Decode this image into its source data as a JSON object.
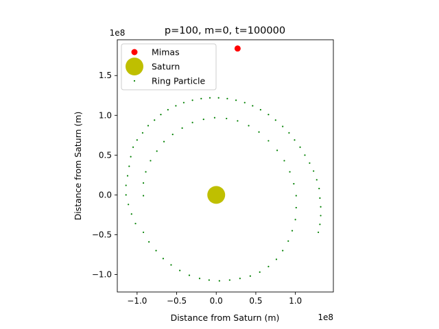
{
  "chart_data": {
    "type": "scatter",
    "title": "p=100, m=0, t=100000",
    "xlabel": "Distance from Saturn (m)",
    "ylabel": "Distance from Saturn (m)",
    "x_offset_text": "1e8",
    "y_offset_text": "1e8",
    "xlim": [
      -1.25,
      1.48
    ],
    "ylim": [
      -1.22,
      1.95
    ],
    "xticks": [
      -1.0,
      -0.5,
      0.0,
      0.5,
      1.0
    ],
    "xtick_labels": [
      "−1.0",
      "−0.5",
      "0.0",
      "0.5",
      "1.0"
    ],
    "yticks": [
      -1.0,
      -0.5,
      0.0,
      0.5,
      1.0,
      1.5
    ],
    "ytick_labels": [
      "−1.0",
      "−0.5",
      "0.0",
      "0.5",
      "1.0",
      "1.5"
    ],
    "grid": false,
    "legend_position": "upper-left",
    "series": [
      {
        "name": "Mimas",
        "color": "#ff0000",
        "marker": "circle",
        "points": [
          [
            0.27,
            1.84
          ]
        ]
      },
      {
        "name": "Saturn",
        "color": "#bfbf00",
        "marker": "large-circle",
        "points": [
          [
            0.0,
            0.0
          ]
        ]
      },
      {
        "name": "Ring Particle",
        "color": "#008000",
        "marker": "point",
        "points": [
          [
            -0.92,
            -0.01
          ],
          [
            -0.92,
            0.15
          ],
          [
            -0.89,
            0.29
          ],
          [
            -0.83,
            0.43
          ],
          [
            -0.75,
            0.55
          ],
          [
            -0.66,
            0.67
          ],
          [
            -0.55,
            0.76
          ],
          [
            -0.43,
            0.84
          ],
          [
            -0.3,
            0.91
          ],
          [
            -0.16,
            0.95
          ],
          [
            -0.02,
            0.97
          ],
          [
            0.13,
            0.96
          ],
          [
            0.27,
            0.93
          ],
          [
            0.41,
            0.87
          ],
          [
            0.54,
            0.79
          ],
          [
            0.66,
            0.68
          ],
          [
            0.77,
            0.56
          ],
          [
            0.86,
            0.43
          ],
          [
            0.93,
            0.29
          ],
          [
            0.98,
            0.14
          ],
          [
            1.01,
            -0.01
          ],
          [
            1.01,
            -0.16
          ],
          [
            1.0,
            -0.31
          ],
          [
            0.96,
            -0.45
          ],
          [
            0.91,
            -0.58
          ],
          [
            0.84,
            -0.7
          ],
          [
            0.76,
            -0.81
          ],
          [
            0.66,
            -0.9
          ],
          [
            0.55,
            -0.97
          ],
          [
            0.43,
            -1.02
          ],
          [
            0.3,
            -1.05
          ],
          [
            0.17,
            -1.07
          ],
          [
            0.04,
            -1.08
          ],
          [
            -0.09,
            -1.07
          ],
          [
            -0.21,
            -1.05
          ],
          [
            -0.34,
            -1.01
          ],
          [
            -0.46,
            -0.95
          ],
          [
            -0.57,
            -0.88
          ],
          [
            -0.67,
            -0.8
          ],
          [
            -0.76,
            -0.7
          ],
          [
            -0.85,
            -0.59
          ],
          [
            -0.92,
            -0.47
          ],
          [
            -1.02,
            -0.36
          ],
          [
            -1.07,
            -0.24
          ],
          [
            -1.11,
            -0.12
          ],
          [
            -1.14,
            0.0
          ],
          [
            -1.14,
            0.12
          ],
          [
            -1.12,
            0.24
          ],
          [
            -1.1,
            0.36
          ],
          [
            -1.08,
            0.48
          ],
          [
            -1.05,
            0.6
          ],
          [
            -1.0,
            0.69
          ],
          [
            -0.93,
            0.78
          ],
          [
            -0.86,
            0.87
          ],
          [
            -0.78,
            0.94
          ],
          [
            -0.7,
            1.01
          ],
          [
            -0.61,
            1.07
          ],
          [
            -0.51,
            1.12
          ],
          [
            -0.41,
            1.16
          ],
          [
            -0.3,
            1.19
          ],
          [
            -0.19,
            1.21
          ],
          [
            -0.08,
            1.22
          ],
          [
            0.03,
            1.22
          ],
          [
            0.14,
            1.21
          ],
          [
            0.25,
            1.19
          ],
          [
            0.36,
            1.16
          ],
          [
            0.46,
            1.12
          ],
          [
            0.56,
            1.07
          ],
          [
            0.66,
            1.01
          ],
          [
            0.75,
            0.94
          ],
          [
            0.84,
            0.86
          ],
          [
            0.92,
            0.78
          ],
          [
            0.99,
            0.69
          ],
          [
            1.06,
            0.6
          ],
          [
            1.12,
            0.5
          ],
          [
            1.18,
            0.4
          ],
          [
            1.23,
            0.3
          ],
          [
            1.27,
            0.19
          ],
          [
            1.3,
            0.08
          ],
          [
            1.31,
            -0.04
          ],
          [
            1.32,
            -0.15
          ],
          [
            1.32,
            -0.26
          ],
          [
            1.31,
            -0.37
          ],
          [
            1.29,
            -0.47
          ]
        ]
      }
    ]
  }
}
